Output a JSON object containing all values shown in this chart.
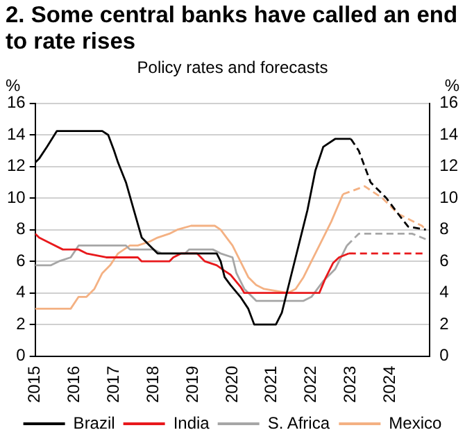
{
  "chart_data": {
    "type": "line",
    "title": "2. Some central banks have called an end to rate rises",
    "subtitle": "Policy rates and forecasts",
    "ylabel": "%",
    "y2label": "%",
    "xlim": [
      2015,
      2025
    ],
    "xticks": [
      2015,
      2016,
      2017,
      2018,
      2019,
      2020,
      2021,
      2022,
      2023,
      2024
    ],
    "ylim": [
      0,
      16
    ],
    "yticks": [
      0,
      2,
      4,
      6,
      8,
      10,
      12,
      14,
      16
    ],
    "y2lim": [
      0,
      16
    ],
    "y2ticks": [
      0,
      2,
      4,
      6,
      8,
      10,
      12,
      14,
      16
    ],
    "grid": "y",
    "legend": "bottom",
    "marker": "none",
    "series": [
      {
        "name": "Brazil",
        "color": "#000000",
        "line_style": "solid",
        "x": [
          2015,
          2015.1,
          2015.3,
          2015.55,
          2016.7,
          2016.85,
          2017,
          2017.1,
          2017.3,
          2017.5,
          2017.7,
          2017.9,
          2018.1,
          2019.6,
          2019.7,
          2019.8,
          2019.95,
          2020.2,
          2020.4,
          2020.55,
          2021.1,
          2021.25,
          2021.4,
          2021.6,
          2021.75,
          2021.9,
          2022.1,
          2022.3,
          2022.6,
          2023.0
        ],
        "values": [
          12.25,
          12.5,
          13.25,
          14.25,
          14.25,
          14,
          13,
          12.25,
          11,
          9.25,
          7.5,
          7,
          6.5,
          6.5,
          6,
          5,
          4.5,
          3.75,
          3,
          2,
          2,
          2.75,
          4.25,
          6.25,
          7.75,
          9.25,
          11.75,
          13.25,
          13.75,
          13.75
        ]
      },
      {
        "name": "India",
        "color": "#e8191c",
        "line_style": "solid",
        "x": [
          2015,
          2015.1,
          2015.3,
          2015.7,
          2016.1,
          2016.3,
          2016.8,
          2017.6,
          2017.7,
          2018.4,
          2018.5,
          2018.7,
          2019.1,
          2019.3,
          2019.6,
          2019.8,
          2019.95,
          2020.2,
          2020.3,
          2022.2,
          2022.35,
          2022.55,
          2022.7,
          2022.95
        ],
        "values": [
          7.75,
          7.5,
          7.25,
          6.75,
          6.75,
          6.5,
          6.25,
          6.25,
          6,
          6,
          6.25,
          6.5,
          6.5,
          6,
          5.75,
          5.4,
          5.15,
          4.4,
          4,
          4,
          4.9,
          5.9,
          6.25,
          6.5
        ]
      },
      {
        "name": "S. Africa",
        "color": "#a6a6a6",
        "line_style": "solid",
        "x": [
          2015,
          2015.4,
          2015.6,
          2015.9,
          2016.1,
          2017.3,
          2017.4,
          2018.0,
          2018.2,
          2018.8,
          2018.9,
          2019.5,
          2019.7,
          2020.0,
          2020.1,
          2020.3,
          2020.5,
          2020.6,
          2021.8,
          2022.0,
          2022.3,
          2022.6,
          2022.75,
          2022.9
        ],
        "values": [
          5.75,
          5.75,
          6,
          6.25,
          7,
          7,
          6.75,
          6.75,
          6.5,
          6.5,
          6.75,
          6.75,
          6.5,
          6.25,
          5.25,
          4.25,
          3.75,
          3.5,
          3.5,
          3.75,
          4.75,
          5.5,
          6.25,
          7
        ]
      },
      {
        "name": "Mexico",
        "color": "#f4b183",
        "line_style": "solid",
        "x": [
          2015,
          2015.9,
          2016.1,
          2016.3,
          2016.5,
          2016.7,
          2016.9,
          2017.1,
          2017.4,
          2017.6,
          2017.9,
          2018.1,
          2018.4,
          2018.6,
          2018.95,
          2019.55,
          2019.7,
          2019.85,
          2020.0,
          2020.2,
          2020.4,
          2020.6,
          2020.8,
          2021.4,
          2021.6,
          2021.8,
          2022.0,
          2022.3,
          2022.5,
          2022.8
        ],
        "values": [
          3,
          3,
          3.75,
          3.75,
          4.25,
          5.25,
          5.75,
          6.5,
          7,
          7,
          7.25,
          7.5,
          7.75,
          8,
          8.25,
          8.25,
          8,
          7.5,
          7,
          6,
          5,
          4.5,
          4.25,
          4,
          4.25,
          5,
          6,
          7.5,
          8.5,
          10.25
        ]
      },
      {
        "color": "#000000",
        "line_style": "dashed",
        "x": [
          2023.0,
          2023.2,
          2023.5,
          2023.9,
          2024.2,
          2024.45,
          2024.9
        ],
        "values": [
          13.75,
          13,
          11,
          10,
          9,
          8.2,
          8
        ]
      },
      {
        "color": "#e8191c",
        "line_style": "dashed",
        "x": [
          2022.95,
          2024.9
        ],
        "values": [
          6.5,
          6.5
        ]
      },
      {
        "color": "#a6a6a6",
        "line_style": "dashed",
        "x": [
          2022.9,
          2023.0,
          2023.2,
          2024.55,
          2024.9
        ],
        "values": [
          7,
          7.25,
          7.75,
          7.75,
          7.4
        ]
      },
      {
        "color": "#f4b183",
        "line_style": "dashed",
        "x": [
          2022.8,
          2023.35,
          2023.8,
          2024.2,
          2024.8,
          2024.9
        ],
        "values": [
          10.25,
          10.75,
          10,
          9,
          8.25,
          8
        ]
      }
    ]
  }
}
